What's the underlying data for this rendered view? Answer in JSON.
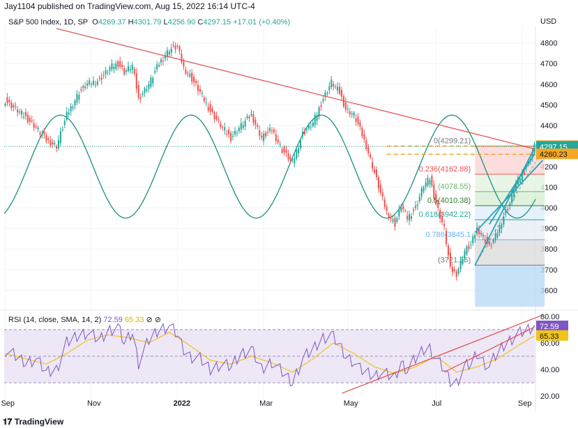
{
  "header": {
    "published": "Jay1104 published on TradingView.com, Aug 15, 2022 16:14 UTC-4"
  },
  "legend": {
    "symbol": "S&P 500 Index, 1D, SP",
    "o_label": "O",
    "o": "4269.37",
    "h_label": "H",
    "h": "4301.79",
    "l_label": "L",
    "l": "4256.90",
    "c_label": "C",
    "c": "4297.15",
    "chg": "+17.01 (+0.40%)"
  },
  "rsi_legend": {
    "label": "RSI (14, close, SMA, 14, 2)",
    "rsi": "72.59",
    "sma": "65.33"
  },
  "footer": {
    "brand": "TradingView"
  },
  "colors": {
    "up": "#26a69a",
    "down": "#ef5350",
    "sine": "#1a8f7e",
    "trend": "#e04a4a",
    "channel": "#2aa3b8",
    "rsi": "#7e57c2",
    "rsi_ma": "#f0c419",
    "band": "#ede7f6"
  },
  "chart_data": [
    {
      "type": "candlestick",
      "title": "S&P 500 Index, 1D, SP",
      "currency": "USD",
      "ylim": [
        3520,
        4880
      ],
      "y_ticks": [
        3600,
        3700,
        3800,
        3900,
        4000,
        4100,
        4200,
        4300,
        4400,
        4500,
        4600,
        4700,
        4800
      ],
      "x_ticks": [
        "Sep",
        "Nov",
        "2022",
        "Mar",
        "May",
        "Jul",
        "Sep"
      ],
      "price_labels": [
        {
          "value": 4300.3,
          "text": "4300.30",
          "color": "#f5a623"
        },
        {
          "value": 4297.15,
          "text": "4297.15",
          "color": "#26a69a"
        },
        {
          "value": 4260.23,
          "text": "4260.23",
          "color": "#f5a623"
        }
      ],
      "close_anchors": [
        [
          0,
          4520
        ],
        [
          5,
          4480
        ],
        [
          10,
          4440
        ],
        [
          15,
          4390
        ],
        [
          20,
          4330
        ],
        [
          25,
          4300
        ],
        [
          30,
          4450
        ],
        [
          36,
          4560
        ],
        [
          40,
          4600
        ],
        [
          46,
          4620
        ],
        [
          51,
          4680
        ],
        [
          55,
          4700
        ],
        [
          58,
          4660
        ],
        [
          62,
          4690
        ],
        [
          65,
          4530
        ],
        [
          70,
          4600
        ],
        [
          75,
          4700
        ],
        [
          80,
          4770
        ],
        [
          84,
          4780
        ],
        [
          87,
          4680
        ],
        [
          90,
          4640
        ],
        [
          95,
          4560
        ],
        [
          100,
          4470
        ],
        [
          105,
          4400
        ],
        [
          110,
          4340
        ],
        [
          115,
          4400
        ],
        [
          120,
          4450
        ],
        [
          125,
          4340
        ],
        [
          130,
          4380
        ],
        [
          135,
          4280
        ],
        [
          140,
          4220
        ],
        [
          145,
          4360
        ],
        [
          150,
          4410
        ],
        [
          155,
          4530
        ],
        [
          159,
          4610
        ],
        [
          163,
          4560
        ],
        [
          166,
          4480
        ],
        [
          170,
          4450
        ],
        [
          173,
          4380
        ],
        [
          176,
          4300
        ],
        [
          180,
          4170
        ],
        [
          183,
          4070
        ],
        [
          186,
          3980
        ],
        [
          190,
          3920
        ],
        [
          193,
          4010
        ],
        [
          196,
          3950
        ],
        [
          200,
          4000
        ],
        [
          204,
          4110
        ],
        [
          207,
          4140
        ],
        [
          210,
          4020
        ],
        [
          214,
          3900
        ],
        [
          217,
          3700
        ],
        [
          220,
          3680
        ],
        [
          224,
          3790
        ],
        [
          227,
          3820
        ],
        [
          230,
          3900
        ],
        [
          233,
          3860
        ],
        [
          236,
          3810
        ],
        [
          239,
          3860
        ],
        [
          243,
          3960
        ],
        [
          246,
          4020
        ],
        [
          249,
          4120
        ],
        [
          252,
          4160
        ],
        [
          255,
          4220
        ],
        [
          258,
          4297
        ]
      ],
      "fibonacci": [
        {
          "level": "0",
          "value": 4299.21,
          "text": "0(4299.21)"
        },
        {
          "level": "0.236",
          "value": 4162.88,
          "text": "0.236(4162.88)"
        },
        {
          "level": "0.382",
          "value": 4078.55,
          "text": "(4078.55)"
        },
        {
          "level": "0.5",
          "value": 4010.38,
          "text": "0.5(4010.38)"
        },
        {
          "level": "0.618",
          "value": 3942.22,
          "text": "0.618(3942.22)"
        },
        {
          "level": "0.786",
          "value": 3845.1,
          "text": "0.786(3845.1"
        },
        {
          "level": "1",
          "value": 3721.56,
          "text": "(3721.56)"
        }
      ]
    },
    {
      "type": "line",
      "title": "RSI (14, close, SMA, 14, 2)",
      "ylim": [
        18,
        82
      ],
      "y_ticks": [
        20,
        40,
        60,
        80
      ],
      "bands": [
        30,
        70
      ],
      "series": [
        {
          "name": "RSI",
          "values_anchor": [
            [
              0,
              55
            ],
            [
              5,
              50
            ],
            [
              10,
              45
            ],
            [
              15,
              48
            ],
            [
              20,
              38
            ],
            [
              25,
              40
            ],
            [
              30,
              60
            ],
            [
              36,
              66
            ],
            [
              40,
              68
            ],
            [
              46,
              62
            ],
            [
              51,
              70
            ],
            [
              55,
              72
            ],
            [
              58,
              60
            ],
            [
              62,
              68
            ],
            [
              65,
              45
            ],
            [
              70,
              62
            ],
            [
              75,
              70
            ],
            [
              80,
              73
            ],
            [
              84,
              66
            ],
            [
              87,
              55
            ],
            [
              90,
              50
            ],
            [
              95,
              48
            ],
            [
              100,
              40
            ],
            [
              105,
              44
            ],
            [
              110,
              42
            ],
            [
              115,
              52
            ],
            [
              120,
              55
            ],
            [
              125,
              40
            ],
            [
              130,
              46
            ],
            [
              135,
              38
            ],
            [
              140,
              30
            ],
            [
              145,
              48
            ],
            [
              150,
              55
            ],
            [
              155,
              64
            ],
            [
              159,
              66
            ],
            [
              163,
              58
            ],
            [
              166,
              50
            ],
            [
              170,
              46
            ],
            [
              173,
              40
            ],
            [
              176,
              38
            ],
            [
              180,
              35
            ],
            [
              183,
              38
            ],
            [
              186,
              36
            ],
            [
              190,
              34
            ],
            [
              193,
              45
            ],
            [
              196,
              40
            ],
            [
              200,
              48
            ],
            [
              204,
              55
            ],
            [
              207,
              56
            ],
            [
              210,
              48
            ],
            [
              214,
              40
            ],
            [
              217,
              31
            ],
            [
              220,
              30
            ],
            [
              224,
              42
            ],
            [
              227,
              44
            ],
            [
              230,
              52
            ],
            [
              233,
              46
            ],
            [
              236,
              42
            ],
            [
              239,
              50
            ],
            [
              243,
              58
            ],
            [
              246,
              62
            ],
            [
              249,
              66
            ],
            [
              252,
              68
            ],
            [
              255,
              70
            ],
            [
              258,
              72.59
            ]
          ]
        },
        {
          "name": "SMA",
          "values_anchor": [
            [
              0,
              52
            ],
            [
              10,
              48
            ],
            [
              20,
              44
            ],
            [
              30,
              52
            ],
            [
              40,
              62
            ],
            [
              50,
              66
            ],
            [
              60,
              64
            ],
            [
              70,
              60
            ],
            [
              80,
              68
            ],
            [
              90,
              58
            ],
            [
              100,
              47
            ],
            [
              110,
              44
            ],
            [
              120,
              50
            ],
            [
              130,
              45
            ],
            [
              140,
              38
            ],
            [
              150,
              48
            ],
            [
              160,
              60
            ],
            [
              170,
              52
            ],
            [
              180,
              42
            ],
            [
              190,
              37
            ],
            [
              200,
              42
            ],
            [
              210,
              50
            ],
            [
              220,
              38
            ],
            [
              230,
              42
            ],
            [
              240,
              48
            ],
            [
              250,
              58
            ],
            [
              258,
              65.33
            ]
          ]
        }
      ]
    }
  ]
}
